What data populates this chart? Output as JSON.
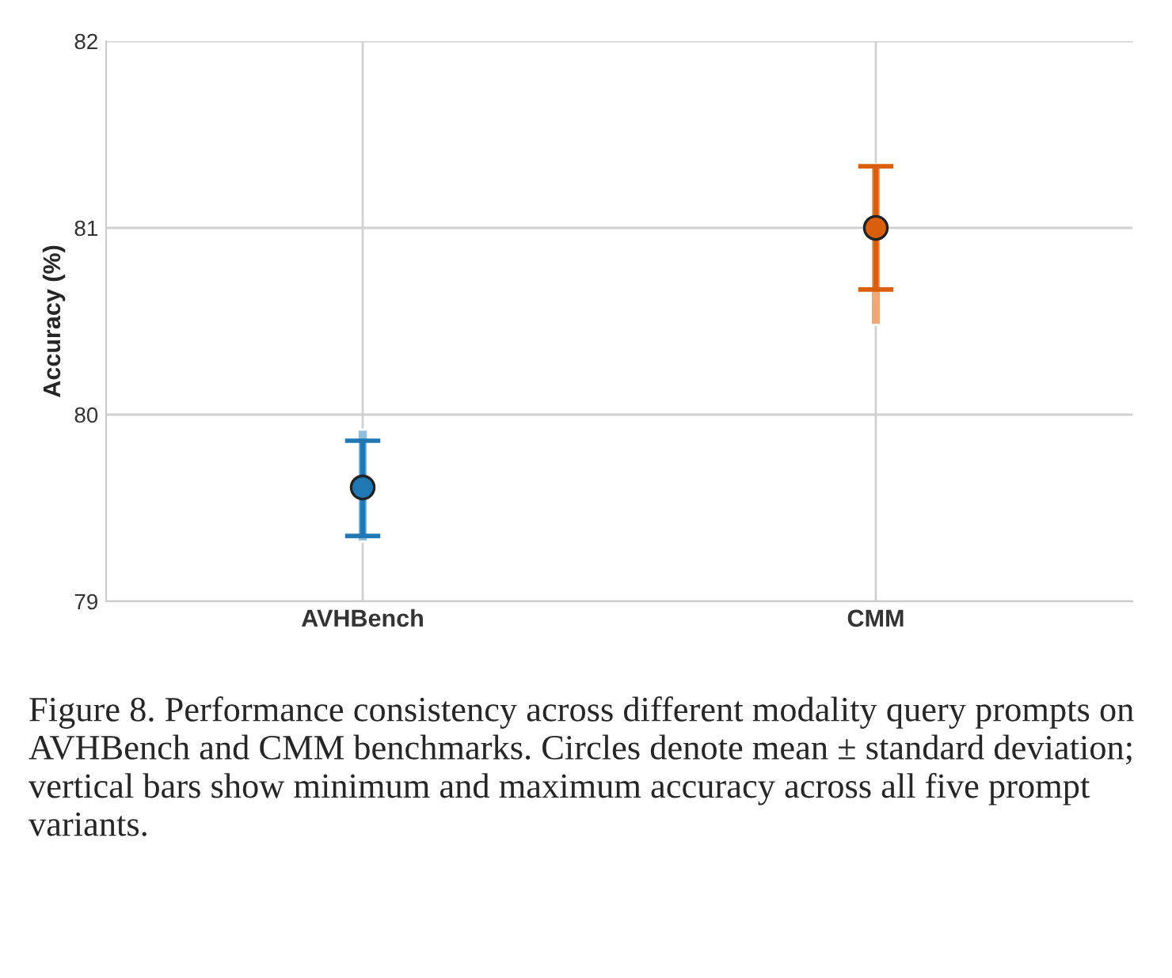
{
  "chart_data": {
    "type": "scatter",
    "ylabel": "Accuracy (%)",
    "categories": [
      "AVHBench",
      "CMM"
    ],
    "series": [
      {
        "type": "bar",
        "colors": [
          "#8fbfe0",
          "#f0a878"
        ],
        "base": [
          79.32,
          80.48
        ],
        "values": [
          0.6,
          0.86
        ]
      },
      {
        "colors": [
          "#1f77b4",
          "#d95f0e"
        ],
        "values": [
          79.61,
          81.0
        ],
        "errors": [
          [
            79.35,
            79.86
          ],
          [
            80.67,
            81.33
          ]
        ]
      }
    ],
    "ylim": [
      79,
      82
    ],
    "yticks": [
      79,
      80,
      81,
      82
    ],
    "grid": true,
    "marker": "circle",
    "annotations": [
      "Figure 8. Performance consistency across different modality query prompts on AVHBench and CMM benchmarks. Circles denote mean ± standard deviation; vertical bars show minimum and maximum accuracy across all five prompt variants."
    ]
  }
}
